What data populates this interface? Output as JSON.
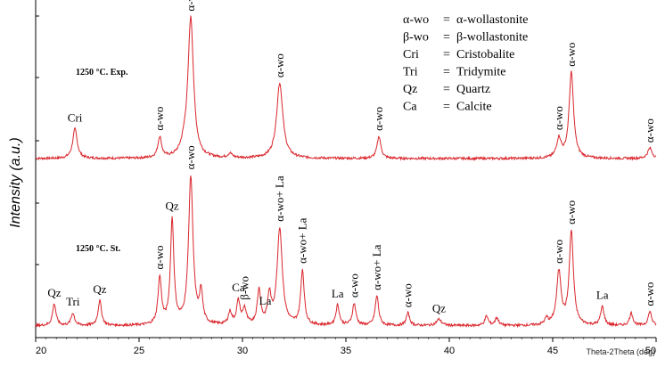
{
  "chart_data": {
    "type": "line",
    "ylabel": "Intensity (a.u.)",
    "xlabel": "Theta-2Theta (deg)",
    "xlim": [
      20,
      50
    ],
    "x_ticks": [
      20,
      25,
      30,
      35,
      40,
      45,
      50
    ],
    "y_ticks": "unlabeled",
    "grid": false,
    "series": [
      {
        "name": "1250 °C. Exp.",
        "color": "#d9262c",
        "baseline": 3,
        "peaks": [
          {
            "x": 21.9,
            "h": 20,
            "w": 0.13
          },
          {
            "x": 26.0,
            "h": 14,
            "w": 0.11
          },
          {
            "x": 27.5,
            "h": 94,
            "w": 0.16
          },
          {
            "x": 27.2,
            "h": 6,
            "w": 0.2
          },
          {
            "x": 29.4,
            "h": 3,
            "w": 0.12
          },
          {
            "x": 31.8,
            "h": 51,
            "w": 0.18
          },
          {
            "x": 36.6,
            "h": 15,
            "w": 0.11
          },
          {
            "x": 45.3,
            "h": 13,
            "w": 0.13
          },
          {
            "x": 45.9,
            "h": 58,
            "w": 0.13
          },
          {
            "x": 49.7,
            "h": 7,
            "w": 0.13
          }
        ],
        "labels": [
          {
            "x": 21.9,
            "text": "Cri"
          },
          {
            "x": 26.0,
            "text": "α-wo"
          },
          {
            "x": 27.5,
            "text": "α-wo"
          },
          {
            "x": 31.8,
            "text": "α-wo"
          },
          {
            "x": 36.6,
            "text": "α-wo"
          },
          {
            "x": 45.3,
            "text": "α-wo"
          },
          {
            "x": 45.9,
            "text": "α-wo"
          },
          {
            "x": 49.7,
            "text": "α-wo"
          }
        ]
      },
      {
        "name": "1250 °C. St.",
        "color": "#d9262c",
        "baseline": 3,
        "peaks": [
          {
            "x": 20.9,
            "h": 14,
            "w": 0.1
          },
          {
            "x": 21.8,
            "h": 8,
            "w": 0.1
          },
          {
            "x": 23.1,
            "h": 16,
            "w": 0.1
          },
          {
            "x": 26.0,
            "h": 30,
            "w": 0.1
          },
          {
            "x": 26.6,
            "h": 67,
            "w": 0.1
          },
          {
            "x": 27.5,
            "h": 95,
            "w": 0.13
          },
          {
            "x": 28.0,
            "h": 20,
            "w": 0.09
          },
          {
            "x": 29.4,
            "h": 8,
            "w": 0.1
          },
          {
            "x": 29.8,
            "h": 15,
            "w": 0.1
          },
          {
            "x": 30.1,
            "h": 10,
            "w": 0.1
          },
          {
            "x": 30.8,
            "h": 22,
            "w": 0.1
          },
          {
            "x": 31.3,
            "h": 18,
            "w": 0.1
          },
          {
            "x": 31.8,
            "h": 62,
            "w": 0.15
          },
          {
            "x": 32.9,
            "h": 35,
            "w": 0.1
          },
          {
            "x": 34.6,
            "h": 13,
            "w": 0.1
          },
          {
            "x": 35.4,
            "h": 14,
            "w": 0.1
          },
          {
            "x": 36.5,
            "h": 19,
            "w": 0.1
          },
          {
            "x": 38.0,
            "h": 8,
            "w": 0.1
          },
          {
            "x": 39.5,
            "h": 4,
            "w": 0.15
          },
          {
            "x": 41.8,
            "h": 6,
            "w": 0.1
          },
          {
            "x": 42.3,
            "h": 5,
            "w": 0.1
          },
          {
            "x": 44.7,
            "h": 4,
            "w": 0.1
          },
          {
            "x": 45.3,
            "h": 34,
            "w": 0.13
          },
          {
            "x": 45.9,
            "h": 60,
            "w": 0.12
          },
          {
            "x": 47.4,
            "h": 12,
            "w": 0.1
          },
          {
            "x": 48.8,
            "h": 8,
            "w": 0.1
          },
          {
            "x": 49.7,
            "h": 9,
            "w": 0.1
          }
        ],
        "labels": [
          {
            "x": 20.9,
            "text": "Qz"
          },
          {
            "x": 21.8,
            "text": "Tri"
          },
          {
            "x": 23.1,
            "text": "Qz"
          },
          {
            "x": 26.0,
            "text": "α-wo"
          },
          {
            "x": 26.6,
            "text": "Qz"
          },
          {
            "x": 27.5,
            "text": "α-wo"
          },
          {
            "x": 29.8,
            "text": "Ca"
          },
          {
            "x": 30.1,
            "text": "β-wo"
          },
          {
            "x": 31.1,
            "text": "La"
          },
          {
            "x": 31.8,
            "text": "α-wo+ La"
          },
          {
            "x": 32.9,
            "text": "α-wo+ La"
          },
          {
            "x": 34.6,
            "text": "La"
          },
          {
            "x": 35.4,
            "text": "α-wo"
          },
          {
            "x": 36.5,
            "text": "α-wo+ La"
          },
          {
            "x": 38.0,
            "text": "α-wo"
          },
          {
            "x": 39.5,
            "text": "Qz"
          },
          {
            "x": 45.3,
            "text": "α-wo"
          },
          {
            "x": 45.9,
            "text": "α-wo"
          },
          {
            "x": 47.4,
            "text": "La"
          },
          {
            "x": 49.7,
            "text": "α-wo"
          }
        ]
      }
    ],
    "legend_placement": "top-right",
    "legend": [
      {
        "abbr": "α-wo",
        "eq": "=",
        "full": "α-wollastonite"
      },
      {
        "abbr": "β-wo",
        "eq": "=",
        "full": "β-wollastonite"
      },
      {
        "abbr": "Cri",
        "eq": "=",
        "full": "Cristobalite"
      },
      {
        "abbr": "Tri",
        "eq": "=",
        "full": "Tridymite"
      },
      {
        "abbr": "Qz",
        "eq": "=",
        "full": "Quartz"
      },
      {
        "abbr": "Ca",
        "eq": "=",
        "full": "Calcite"
      }
    ]
  }
}
